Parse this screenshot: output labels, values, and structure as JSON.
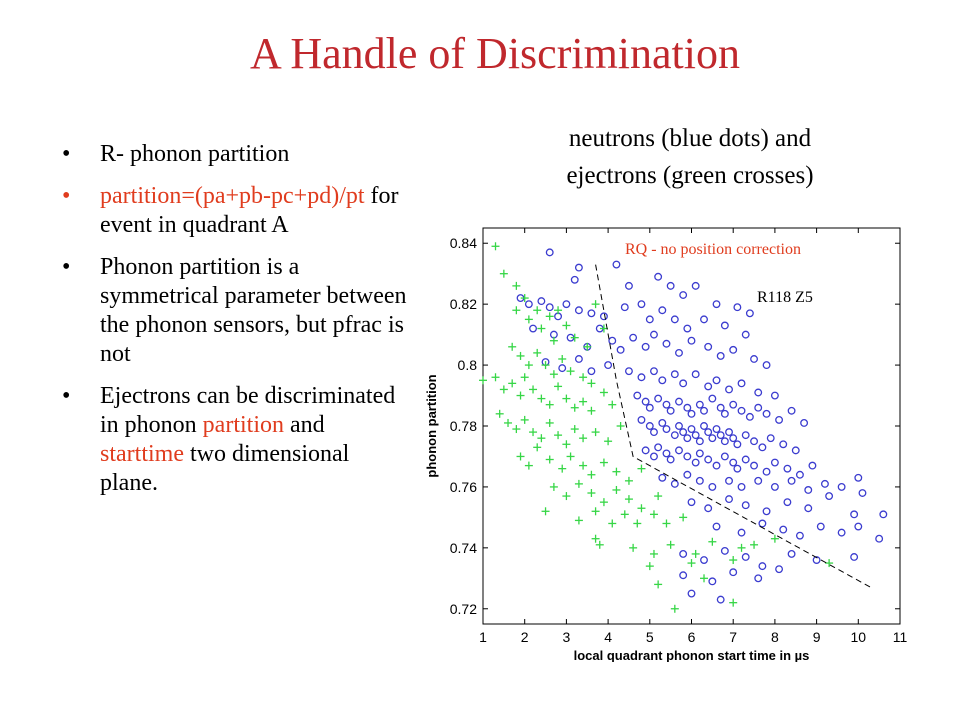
{
  "slide": {
    "title": "A Handle of Discrimination",
    "bullets": [
      {
        "parts": [
          {
            "text": "R- phonon partition",
            "color": "black"
          }
        ],
        "bullet_color": "black"
      },
      {
        "parts": [
          {
            "text": "partition=(pa+pb-pc+pd)/pt",
            "color": "red"
          },
          {
            "text": " for event in quadrant A",
            "color": "black"
          }
        ],
        "bullet_color": "red"
      },
      {
        "parts": [
          {
            "text": "Phonon partition is a symmetrical parameter between the phonon sensors, but pfrac is not",
            "color": "black"
          }
        ],
        "bullet_color": "black"
      },
      {
        "parts": [
          {
            "text": "Ejectrons can be discriminated in phonon ",
            "color": "black"
          },
          {
            "text": "partition",
            "color": "red"
          },
          {
            "text": " and ",
            "color": "black"
          },
          {
            "text": "starttime",
            "color": "red"
          },
          {
            "text": " two dimensional plane.",
            "color": "black"
          }
        ],
        "bullet_color": "black"
      }
    ],
    "caption_line1": "neutrons (blue dots) and",
    "caption_line2": "ejectrons (green crosses)",
    "bullet_glyph": "•",
    "colors": {
      "title": "#c0282d",
      "red": "#e03c1e"
    }
  },
  "chart_data": {
    "type": "scatter",
    "xlabel": "local quadrant phonon start time in µs",
    "ylabel": "phonon partition",
    "xlim": [
      1,
      11
    ],
    "ylim": [
      0.715,
      0.845
    ],
    "xticks": [
      1,
      2,
      3,
      4,
      5,
      6,
      7,
      8,
      9,
      10,
      11
    ],
    "yticks": [
      0.72,
      0.74,
      0.76,
      0.78,
      0.8,
      0.82,
      0.84
    ],
    "grid": false,
    "annotation_red": "RQ - no position correction",
    "annotation_black": "R118  Z5",
    "cut_line": [
      [
        3.7,
        0.833
      ],
      [
        4.2,
        0.795
      ],
      [
        4.6,
        0.77
      ],
      [
        10.3,
        0.727
      ]
    ],
    "series": [
      {
        "marker": "circle",
        "color": "#3b3ccf",
        "points": [
          [
            2.6,
            0.837
          ],
          [
            3.2,
            0.828
          ],
          [
            3.3,
            0.832
          ],
          [
            4.2,
            0.833
          ],
          [
            4.5,
            0.826
          ],
          [
            5.2,
            0.829
          ],
          [
            5.5,
            0.826
          ],
          [
            5.8,
            0.823
          ],
          [
            6.1,
            0.826
          ],
          [
            6.6,
            0.82
          ],
          [
            7.1,
            0.819
          ],
          [
            7.4,
            0.817
          ],
          [
            1.9,
            0.822
          ],
          [
            2.1,
            0.82
          ],
          [
            2.4,
            0.821
          ],
          [
            2.6,
            0.819
          ],
          [
            2.8,
            0.816
          ],
          [
            3.0,
            0.82
          ],
          [
            3.3,
            0.818
          ],
          [
            3.6,
            0.817
          ],
          [
            3.9,
            0.816
          ],
          [
            4.4,
            0.819
          ],
          [
            4.8,
            0.82
          ],
          [
            5.0,
            0.815
          ],
          [
            5.3,
            0.818
          ],
          [
            5.6,
            0.815
          ],
          [
            5.9,
            0.812
          ],
          [
            6.3,
            0.815
          ],
          [
            6.8,
            0.813
          ],
          [
            7.3,
            0.81
          ],
          [
            2.2,
            0.812
          ],
          [
            2.7,
            0.81
          ],
          [
            3.1,
            0.809
          ],
          [
            3.5,
            0.806
          ],
          [
            3.8,
            0.812
          ],
          [
            4.1,
            0.808
          ],
          [
            4.3,
            0.805
          ],
          [
            4.6,
            0.809
          ],
          [
            4.9,
            0.806
          ],
          [
            5.1,
            0.81
          ],
          [
            5.4,
            0.807
          ],
          [
            5.7,
            0.804
          ],
          [
            6.0,
            0.808
          ],
          [
            6.4,
            0.806
          ],
          [
            6.7,
            0.803
          ],
          [
            7.0,
            0.805
          ],
          [
            7.5,
            0.802
          ],
          [
            7.8,
            0.8
          ],
          [
            2.5,
            0.801
          ],
          [
            2.9,
            0.799
          ],
          [
            3.3,
            0.802
          ],
          [
            3.6,
            0.798
          ],
          [
            4.0,
            0.8
          ],
          [
            4.5,
            0.798
          ],
          [
            4.8,
            0.796
          ],
          [
            5.1,
            0.798
          ],
          [
            5.3,
            0.795
          ],
          [
            5.6,
            0.797
          ],
          [
            5.8,
            0.794
          ],
          [
            6.1,
            0.797
          ],
          [
            6.4,
            0.793
          ],
          [
            6.6,
            0.795
          ],
          [
            6.9,
            0.792
          ],
          [
            7.2,
            0.794
          ],
          [
            7.6,
            0.791
          ],
          [
            8.0,
            0.79
          ],
          [
            4.7,
            0.79
          ],
          [
            4.9,
            0.788
          ],
          [
            5.0,
            0.786
          ],
          [
            5.2,
            0.789
          ],
          [
            5.4,
            0.787
          ],
          [
            5.5,
            0.785
          ],
          [
            5.7,
            0.788
          ],
          [
            5.9,
            0.786
          ],
          [
            6.0,
            0.784
          ],
          [
            6.2,
            0.787
          ],
          [
            6.3,
            0.785
          ],
          [
            6.5,
            0.789
          ],
          [
            6.7,
            0.786
          ],
          [
            6.8,
            0.784
          ],
          [
            7.0,
            0.787
          ],
          [
            7.2,
            0.785
          ],
          [
            7.4,
            0.783
          ],
          [
            7.6,
            0.786
          ],
          [
            7.8,
            0.784
          ],
          [
            8.1,
            0.782
          ],
          [
            8.4,
            0.785
          ],
          [
            8.7,
            0.781
          ],
          [
            4.8,
            0.782
          ],
          [
            5.0,
            0.78
          ],
          [
            5.1,
            0.778
          ],
          [
            5.3,
            0.781
          ],
          [
            5.4,
            0.779
          ],
          [
            5.6,
            0.777
          ],
          [
            5.7,
            0.78
          ],
          [
            5.8,
            0.778
          ],
          [
            5.9,
            0.776
          ],
          [
            6.0,
            0.779
          ],
          [
            6.1,
            0.777
          ],
          [
            6.2,
            0.775
          ],
          [
            6.3,
            0.78
          ],
          [
            6.4,
            0.778
          ],
          [
            6.5,
            0.776
          ],
          [
            6.6,
            0.779
          ],
          [
            6.7,
            0.777
          ],
          [
            6.8,
            0.775
          ],
          [
            6.9,
            0.778
          ],
          [
            7.0,
            0.776
          ],
          [
            7.1,
            0.774
          ],
          [
            7.3,
            0.777
          ],
          [
            7.5,
            0.775
          ],
          [
            7.7,
            0.773
          ],
          [
            7.9,
            0.776
          ],
          [
            8.2,
            0.774
          ],
          [
            8.5,
            0.772
          ],
          [
            4.9,
            0.772
          ],
          [
            5.1,
            0.77
          ],
          [
            5.2,
            0.773
          ],
          [
            5.4,
            0.771
          ],
          [
            5.5,
            0.769
          ],
          [
            5.7,
            0.772
          ],
          [
            5.9,
            0.77
          ],
          [
            6.1,
            0.768
          ],
          [
            6.2,
            0.771
          ],
          [
            6.4,
            0.769
          ],
          [
            6.6,
            0.767
          ],
          [
            6.8,
            0.77
          ],
          [
            7.0,
            0.768
          ],
          [
            7.1,
            0.766
          ],
          [
            7.3,
            0.769
          ],
          [
            7.5,
            0.767
          ],
          [
            7.8,
            0.765
          ],
          [
            8.0,
            0.768
          ],
          [
            8.3,
            0.766
          ],
          [
            8.6,
            0.764
          ],
          [
            8.9,
            0.767
          ],
          [
            5.3,
            0.763
          ],
          [
            5.6,
            0.761
          ],
          [
            5.9,
            0.764
          ],
          [
            6.2,
            0.762
          ],
          [
            6.5,
            0.76
          ],
          [
            6.9,
            0.762
          ],
          [
            7.2,
            0.76
          ],
          [
            7.6,
            0.762
          ],
          [
            8.0,
            0.76
          ],
          [
            8.4,
            0.762
          ],
          [
            8.8,
            0.759
          ],
          [
            9.2,
            0.761
          ],
          [
            9.6,
            0.76
          ],
          [
            10.0,
            0.763
          ],
          [
            10.1,
            0.758
          ],
          [
            6.0,
            0.755
          ],
          [
            6.4,
            0.753
          ],
          [
            6.9,
            0.756
          ],
          [
            7.3,
            0.754
          ],
          [
            7.8,
            0.752
          ],
          [
            8.3,
            0.755
          ],
          [
            8.8,
            0.753
          ],
          [
            9.3,
            0.757
          ],
          [
            9.9,
            0.751
          ],
          [
            10.6,
            0.751
          ],
          [
            6.6,
            0.747
          ],
          [
            7.2,
            0.745
          ],
          [
            7.7,
            0.748
          ],
          [
            8.2,
            0.746
          ],
          [
            8.6,
            0.744
          ],
          [
            9.1,
            0.747
          ],
          [
            9.6,
            0.745
          ],
          [
            10.0,
            0.747
          ],
          [
            10.5,
            0.743
          ],
          [
            5.8,
            0.738
          ],
          [
            6.3,
            0.736
          ],
          [
            6.8,
            0.739
          ],
          [
            7.3,
            0.737
          ],
          [
            7.7,
            0.734
          ],
          [
            8.4,
            0.738
          ],
          [
            9.0,
            0.736
          ],
          [
            9.9,
            0.737
          ],
          [
            5.8,
            0.731
          ],
          [
            6.5,
            0.729
          ],
          [
            7.0,
            0.732
          ],
          [
            7.6,
            0.73
          ],
          [
            8.1,
            0.733
          ],
          [
            6.0,
            0.725
          ],
          [
            6.7,
            0.723
          ]
        ]
      },
      {
        "marker": "plus",
        "color": "#36d646",
        "points": [
          [
            1.3,
            0.839
          ],
          [
            1.5,
            0.83
          ],
          [
            1.8,
            0.826
          ],
          [
            2.0,
            0.822
          ],
          [
            1.8,
            0.818
          ],
          [
            2.1,
            0.815
          ],
          [
            2.3,
            0.818
          ],
          [
            2.6,
            0.816
          ],
          [
            2.8,
            0.818
          ],
          [
            3.0,
            0.813
          ],
          [
            2.4,
            0.812
          ],
          [
            2.7,
            0.808
          ],
          [
            3.2,
            0.809
          ],
          [
            3.5,
            0.806
          ],
          [
            3.7,
            0.82
          ],
          [
            3.9,
            0.812
          ],
          [
            1.7,
            0.806
          ],
          [
            1.9,
            0.803
          ],
          [
            2.1,
            0.8
          ],
          [
            2.3,
            0.804
          ],
          [
            2.5,
            0.8
          ],
          [
            2.7,
            0.797
          ],
          [
            2.9,
            0.802
          ],
          [
            3.1,
            0.798
          ],
          [
            3.4,
            0.796
          ],
          [
            3.6,
            0.794
          ],
          [
            1.0,
            0.795
          ],
          [
            1.3,
            0.796
          ],
          [
            1.5,
            0.792
          ],
          [
            1.7,
            0.794
          ],
          [
            1.9,
            0.79
          ],
          [
            2.0,
            0.796
          ],
          [
            2.2,
            0.792
          ],
          [
            2.4,
            0.789
          ],
          [
            2.6,
            0.787
          ],
          [
            2.8,
            0.793
          ],
          [
            3.0,
            0.789
          ],
          [
            3.2,
            0.786
          ],
          [
            3.4,
            0.788
          ],
          [
            3.6,
            0.785
          ],
          [
            3.9,
            0.791
          ],
          [
            4.1,
            0.787
          ],
          [
            1.4,
            0.784
          ],
          [
            1.6,
            0.781
          ],
          [
            1.8,
            0.779
          ],
          [
            2.0,
            0.782
          ],
          [
            2.2,
            0.778
          ],
          [
            2.4,
            0.776
          ],
          [
            2.6,
            0.781
          ],
          [
            2.8,
            0.777
          ],
          [
            3.0,
            0.774
          ],
          [
            3.2,
            0.779
          ],
          [
            3.4,
            0.776
          ],
          [
            3.7,
            0.778
          ],
          [
            4.0,
            0.775
          ],
          [
            4.3,
            0.78
          ],
          [
            1.9,
            0.77
          ],
          [
            2.1,
            0.767
          ],
          [
            2.3,
            0.773
          ],
          [
            2.6,
            0.769
          ],
          [
            2.9,
            0.766
          ],
          [
            3.1,
            0.77
          ],
          [
            3.4,
            0.767
          ],
          [
            3.6,
            0.764
          ],
          [
            3.9,
            0.768
          ],
          [
            4.2,
            0.765
          ],
          [
            4.5,
            0.762
          ],
          [
            4.8,
            0.766
          ],
          [
            2.7,
            0.76
          ],
          [
            3.0,
            0.757
          ],
          [
            3.3,
            0.761
          ],
          [
            3.6,
            0.758
          ],
          [
            3.9,
            0.755
          ],
          [
            4.2,
            0.759
          ],
          [
            4.5,
            0.756
          ],
          [
            4.8,
            0.753
          ],
          [
            5.2,
            0.757
          ],
          [
            2.5,
            0.752
          ],
          [
            3.3,
            0.749
          ],
          [
            3.7,
            0.752
          ],
          [
            4.1,
            0.748
          ],
          [
            4.4,
            0.751
          ],
          [
            4.7,
            0.748
          ],
          [
            5.1,
            0.751
          ],
          [
            5.4,
            0.748
          ],
          [
            5.8,
            0.75
          ],
          [
            3.8,
            0.741
          ],
          [
            4.6,
            0.74
          ],
          [
            5.5,
            0.741
          ],
          [
            6.5,
            0.742
          ],
          [
            7.5,
            0.741
          ],
          [
            5.1,
            0.738
          ],
          [
            6.1,
            0.738
          ],
          [
            7.2,
            0.74
          ],
          [
            3.7,
            0.743
          ],
          [
            5.0,
            0.734
          ],
          [
            6.0,
            0.735
          ],
          [
            7.0,
            0.736
          ],
          [
            8.0,
            0.743
          ],
          [
            5.2,
            0.728
          ],
          [
            6.3,
            0.73
          ],
          [
            9.3,
            0.735
          ],
          [
            5.6,
            0.72
          ],
          [
            7.0,
            0.722
          ]
        ]
      }
    ]
  }
}
